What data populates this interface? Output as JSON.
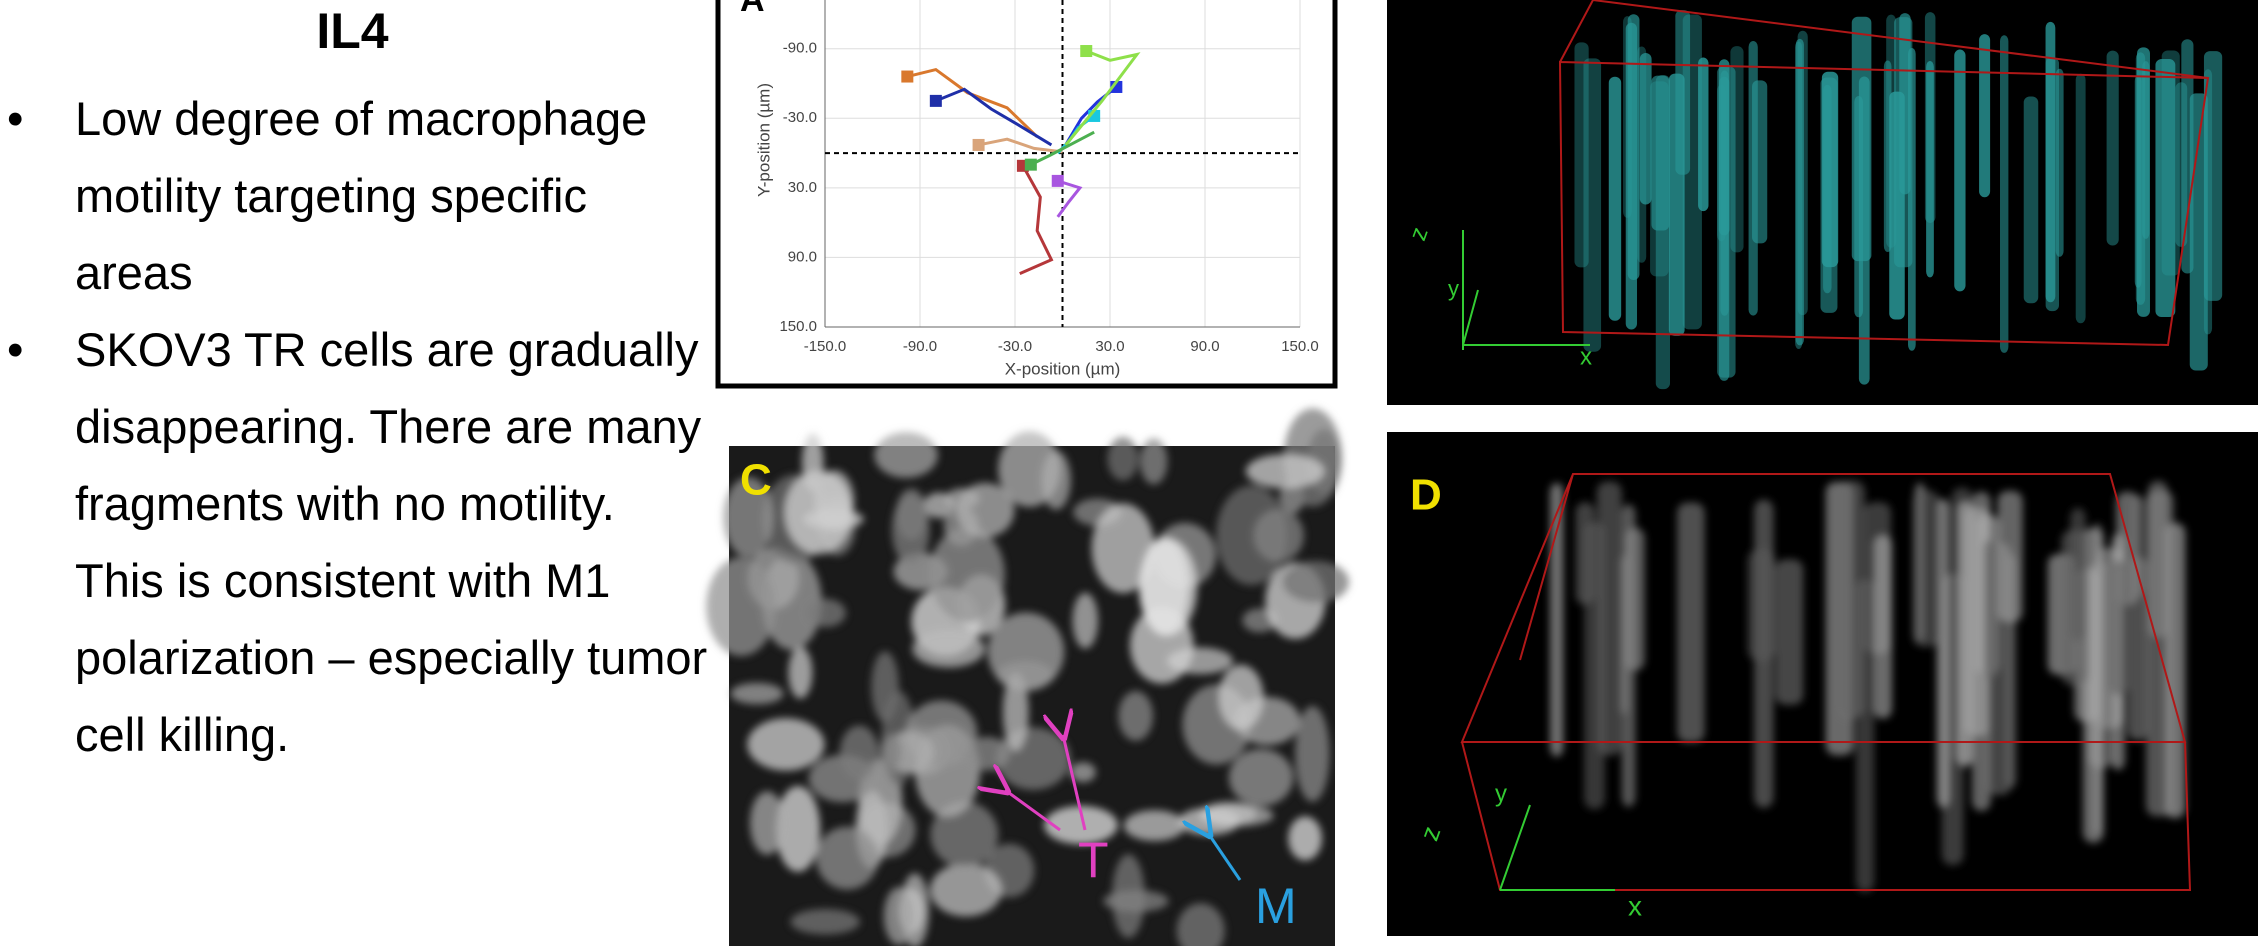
{
  "header": {
    "title": "IL4"
  },
  "bullets": [
    "Low degree of macrophage motility targeting specific areas",
    "SKOV3 TR cells are gradually disappearing. There are many fragments with no motility. This is consistent with M1 polarization – especially tumor cell killing."
  ],
  "panels": {
    "a": {
      "label": "A"
    },
    "c": {
      "label": "C",
      "annotations": [
        "T",
        "M"
      ]
    },
    "d": {
      "label": "D",
      "axes": [
        "z",
        "y",
        "x"
      ]
    },
    "b": {
      "axes": [
        "z",
        "y",
        "x"
      ]
    }
  },
  "chart_data": {
    "type": "line",
    "x_label": "X-position (µm)",
    "y_label": "Y-position (µm)",
    "xlim": [
      -150,
      150
    ],
    "ylim": [
      150,
      -132
    ],
    "xticks": [
      {
        "value": -150,
        "label": "-150.0"
      },
      {
        "value": -90,
        "label": "-90.0"
      },
      {
        "value": -30,
        "label": "-30.0"
      },
      {
        "value": 30,
        "label": "30.0"
      },
      {
        "value": 90,
        "label": "90.0"
      },
      {
        "value": 150,
        "label": "150.0"
      }
    ],
    "yticks": [
      {
        "value": -90,
        "label": "-90.0"
      },
      {
        "value": -30,
        "label": "-30.0"
      },
      {
        "value": 30,
        "label": "30.0"
      },
      {
        "value": 90,
        "label": "90.0"
      },
      {
        "value": 150,
        "label": "150.0"
      }
    ],
    "grid": true,
    "series": [
      {
        "color": "#d9782d",
        "x": [
          -98,
          -80,
          -60,
          -35,
          -16
        ],
        "y": [
          -66,
          -72,
          -52,
          -39,
          -14
        ]
      },
      {
        "color": "#1f2fa8",
        "x": [
          -80,
          -62,
          -45,
          -30,
          -7
        ],
        "y": [
          -45,
          -55,
          -38,
          -26,
          -7
        ]
      },
      {
        "color": "#d9a47a",
        "x": [
          -53,
          -35,
          -18,
          0
        ],
        "y": [
          -7,
          -12,
          -4,
          -1
        ]
      },
      {
        "color": "#2233dd",
        "x": [
          34,
          22,
          12,
          2
        ],
        "y": [
          -57,
          -44,
          -30,
          -7
        ]
      },
      {
        "color": "#19c8e0",
        "x": [
          20,
          10,
          4,
          -3
        ],
        "y": [
          -32,
          -22,
          -10,
          0
        ]
      },
      {
        "color": "#8ee04a",
        "x": [
          15,
          30,
          47,
          25,
          2
        ],
        "y": [
          -88,
          -80,
          -85,
          -45,
          -7
        ]
      },
      {
        "color": "#a855e0",
        "x": [
          -3,
          11,
          4,
          -3
        ],
        "y": [
          24,
          30,
          42,
          55
        ]
      },
      {
        "color": "#b5373a",
        "x": [
          -25,
          -14,
          -16,
          -7,
          -27
        ],
        "y": [
          11,
          38,
          67,
          92,
          104
        ]
      },
      {
        "color": "#4caf50",
        "x": [
          -20,
          -8,
          6,
          20
        ],
        "y": [
          10,
          2,
          -8,
          -18
        ]
      }
    ]
  }
}
